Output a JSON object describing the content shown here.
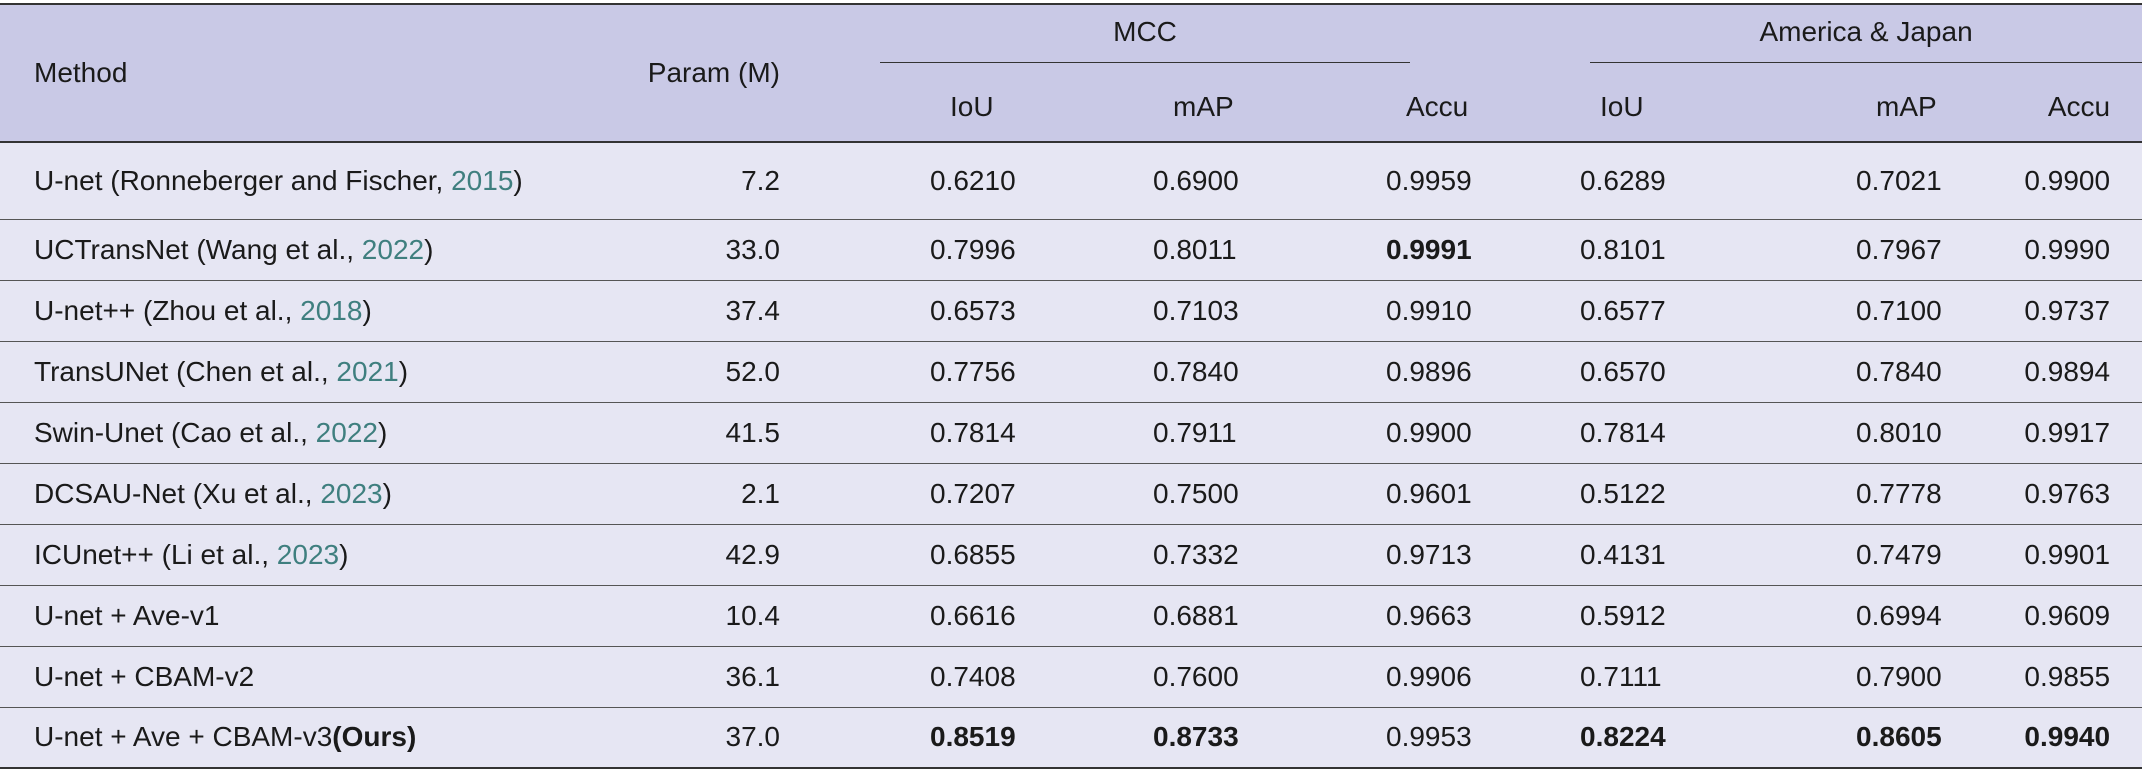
{
  "header": {
    "method": "Method",
    "param": "Param (M)",
    "group1": "MCC",
    "group2": "America & Japan",
    "sub": [
      "IoU",
      "mAP",
      "Accu",
      "IoU",
      "mAP",
      "Accu"
    ]
  },
  "rows": [
    {
      "name": "U-net (Ronneberger and Fischer, ",
      "year": "2015",
      "close": ")",
      "ours": "",
      "param": "7.2",
      "v": [
        "0.6210",
        "0.6900",
        "0.9959",
        "0.6289",
        "0.7021",
        "0.9900"
      ]
    },
    {
      "name": "UCTransNet (Wang et al., ",
      "year": "2022",
      "close": ")",
      "ours": "",
      "param": "33.0",
      "v": [
        "0.7996",
        "0.8011",
        "0.9991",
        "0.8101",
        "0.7967",
        "0.9990"
      ]
    },
    {
      "name": "U-net++ (Zhou et al., ",
      "year": "2018",
      "close": ")",
      "ours": "",
      "param": "37.4",
      "v": [
        "0.6573",
        "0.7103",
        "0.9910",
        "0.6577",
        "0.7100",
        "0.9737"
      ]
    },
    {
      "name": "TransUNet (Chen et al., ",
      "year": "2021",
      "close": ")",
      "ours": "",
      "param": "52.0",
      "v": [
        "0.7756",
        "0.7840",
        "0.9896",
        "0.6570",
        "0.7840",
        "0.9894"
      ]
    },
    {
      "name": "Swin-Unet (Cao et al., ",
      "year": "2022",
      "close": ")",
      "ours": "",
      "param": "41.5",
      "v": [
        "0.7814",
        "0.7911",
        "0.9900",
        "0.7814",
        "0.8010",
        "0.9917"
      ]
    },
    {
      "name": "DCSAU-Net (Xu et al., ",
      "year": "2023",
      "close": ")",
      "ours": "",
      "param": "2.1",
      "v": [
        "0.7207",
        "0.7500",
        "0.9601",
        "0.5122",
        "0.7778",
        "0.9763"
      ]
    },
    {
      "name": "ICUnet++ (Li et al., ",
      "year": "2023",
      "close": ")",
      "ours": "",
      "param": "42.9",
      "v": [
        "0.6855",
        "0.7332",
        "0.9713",
        "0.4131",
        "0.7479",
        "0.9901"
      ]
    },
    {
      "name": "U-net + Ave-v1",
      "year": "",
      "close": "",
      "ours": "",
      "param": "10.4",
      "v": [
        "0.6616",
        "0.6881",
        "0.9663",
        "0.5912",
        "0.6994",
        "0.9609"
      ]
    },
    {
      "name": "U-net + CBAM-v2",
      "year": "",
      "close": "",
      "ours": "",
      "param": "36.1",
      "v": [
        "0.7408",
        "0.7600",
        "0.9906",
        "0.7111",
        "0.7900",
        "0.9855"
      ]
    },
    {
      "name": "U-net + Ave + CBAM-v3",
      "year": "",
      "close": "",
      "ours": "(Ours)",
      "param": "37.0",
      "v": [
        "0.8519",
        "0.8733",
        "0.9953",
        "0.8224",
        "0.8605",
        "0.9940"
      ]
    }
  ],
  "bold_cells": [
    [
      1,
      2
    ],
    [
      9,
      0
    ],
    [
      9,
      1
    ],
    [
      9,
      3
    ],
    [
      9,
      4
    ],
    [
      9,
      5
    ]
  ]
}
